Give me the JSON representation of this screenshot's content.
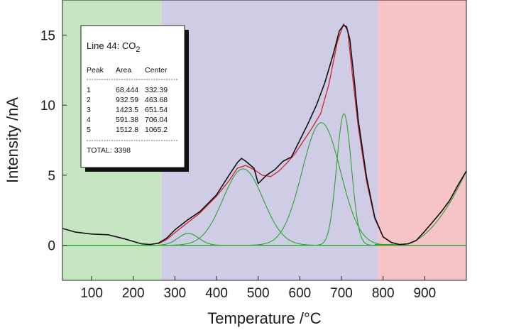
{
  "chart_data": {
    "type": "line",
    "xlabel": "Temperature  /°C",
    "ylabel": "Intensity  /nA",
    "xlim": [
      30,
      1000
    ],
    "ylim": [
      -2.5,
      17.5
    ],
    "xticks": [
      100,
      200,
      300,
      400,
      500,
      600,
      700,
      800,
      900
    ],
    "yticks": [
      0,
      5,
      10,
      15
    ],
    "tick_labels_x": [
      "100",
      "200",
      "300",
      "400",
      "500",
      "600",
      "700",
      "800",
      "900"
    ],
    "tick_labels_y": [
      "0",
      "5",
      "10",
      "15"
    ],
    "regions": [
      {
        "from": 30,
        "to": 268,
        "color": "#c5e6c0"
      },
      {
        "from": 268,
        "to": 788,
        "color": "#cfcce6"
      },
      {
        "from": 788,
        "to": 1000,
        "color": "#f6c3c7"
      }
    ],
    "colors": {
      "measured": "#111111",
      "fit": "#d4202a",
      "components": "#2ea22e",
      "baseline": "#2ea22e"
    },
    "series": [
      {
        "key": "measured",
        "x": [
          30,
          60,
          100,
          140,
          180,
          220,
          240,
          260,
          280,
          300,
          330,
          360,
          400,
          430,
          450,
          460,
          470,
          490,
          500,
          520,
          540,
          560,
          580,
          600,
          620,
          640,
          660,
          680,
          695,
          705,
          712,
          720,
          730,
          740,
          760,
          780,
          800,
          820,
          840,
          860,
          880,
          900,
          920,
          940,
          960,
          980,
          1000
        ],
        "y": [
          1.2,
          0.95,
          0.8,
          0.75,
          0.45,
          0.1,
          0.05,
          0.15,
          0.5,
          1.1,
          1.8,
          2.4,
          3.6,
          5.0,
          5.9,
          6.2,
          6.0,
          5.5,
          4.4,
          5.0,
          5.4,
          6.0,
          6.3,
          7.5,
          8.7,
          10.0,
          11.6,
          13.6,
          15.3,
          15.7,
          15.6,
          14.7,
          12.0,
          9.0,
          4.9,
          2.0,
          0.6,
          0.2,
          0.05,
          0.1,
          0.35,
          1.0,
          1.7,
          2.4,
          3.2,
          4.3,
          5.3
        ]
      },
      {
        "key": "fit",
        "x": [
          260,
          280,
          300,
          330,
          360,
          400,
          430,
          450,
          470,
          490,
          510,
          530,
          550,
          570,
          590,
          610,
          630,
          650,
          670,
          690,
          705,
          715,
          725,
          740,
          760,
          780,
          800,
          820,
          840,
          860,
          880,
          900,
          920,
          940,
          960,
          980,
          1000
        ],
        "y": [
          0.1,
          0.4,
          0.9,
          1.6,
          2.3,
          3.5,
          4.6,
          5.5,
          5.7,
          5.4,
          5.0,
          4.9,
          5.3,
          5.9,
          6.6,
          7.5,
          8.4,
          9.4,
          11.5,
          14.5,
          15.8,
          15.3,
          12.5,
          8.5,
          4.6,
          1.9,
          0.6,
          0.2,
          0.05,
          0.1,
          0.35,
          1.0,
          1.7,
          2.4,
          3.2,
          4.3,
          5.3
        ]
      }
    ],
    "components": [
      {
        "center": 332.39,
        "area": 68.444
      },
      {
        "center": 463.68,
        "area": 932.59
      },
      {
        "center": 651.54,
        "area": 1423.5
      },
      {
        "center": 706.04,
        "area": 591.38
      },
      {
        "center": 1065.2,
        "area": 1512.8
      }
    ],
    "legend": {
      "title_prefix": "Line 44: CO",
      "title_sub": "2",
      "columns": [
        "Peak",
        "Area",
        "Center"
      ],
      "rows": [
        [
          "1",
          "68.444",
          "332.39"
        ],
        [
          "2",
          "932.59",
          "463.68"
        ],
        [
          "3",
          "1423.5",
          "651.54"
        ],
        [
          "4",
          "591.38",
          "706.04"
        ],
        [
          "5",
          "1512.8",
          "1065.2"
        ]
      ],
      "total": "TOTAL: 3398",
      "placement": "top-left"
    }
  }
}
